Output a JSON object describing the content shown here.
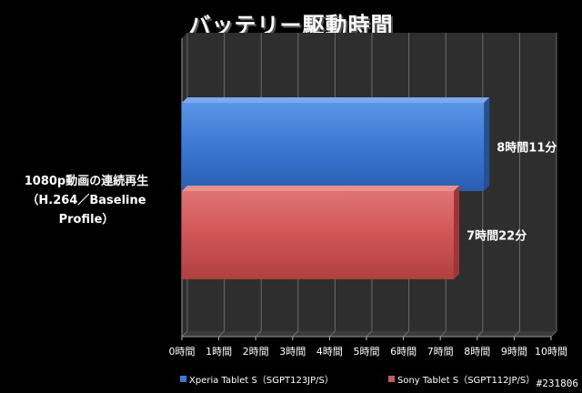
{
  "title": "バッテリー駆動時間",
  "category": {
    "line1": "1080p動画の連続再生",
    "line2": "（H.264／Baseline Profile）"
  },
  "colors": {
    "xperia": "#3a78d4",
    "sony": "#d05555",
    "plot_bg": "#2e2e2e",
    "grid": "#6a6a6a"
  },
  "legend": {
    "items": [
      {
        "label": "Xperia Tablet S（SGPT123JP/S）",
        "color": "#3a78d4"
      },
      {
        "label": "Sony Tablet S（SGPT112JP/S）",
        "color": "#d05555"
      }
    ]
  },
  "watermark": "#231806",
  "chart_data": {
    "type": "bar",
    "orientation": "horizontal",
    "title": "バッテリー駆動時間",
    "categories": [
      "1080p動画の連続再生（H.264／Baseline Profile）"
    ],
    "xlim": [
      0,
      10
    ],
    "x_ticks": [
      "0時間",
      "1時間",
      "2時間",
      "3時間",
      "4時間",
      "5時間",
      "6時間",
      "7時間",
      "8時間",
      "9時間",
      "10時間"
    ],
    "grid": true,
    "legend_position": "bottom",
    "series": [
      {
        "name": "Xperia Tablet S（SGPT123JP/S）",
        "values": [
          8.1833
        ],
        "label": "8時間11分"
      },
      {
        "name": "Sony Tablet S（SGPT112JP/S）",
        "values": [
          7.3667
        ],
        "label": "7時間22分"
      }
    ]
  }
}
